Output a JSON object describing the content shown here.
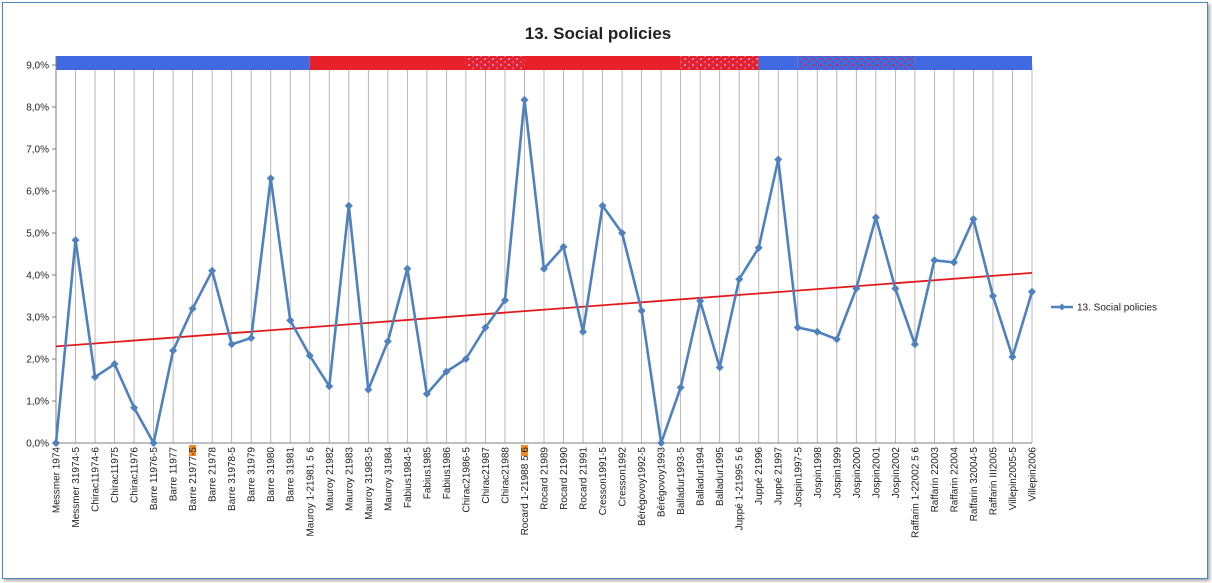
{
  "chart_data": {
    "type": "line",
    "title": "13. Social policies",
    "xlabel": "",
    "ylabel": "",
    "ylim": [
      0,
      9
    ],
    "y_tick_labels": [
      "0,0%",
      "1,0%",
      "2,0%",
      "3,0%",
      "4,0%",
      "5,0%",
      "6,0%",
      "7,0%",
      "8,0%",
      "9,0%"
    ],
    "grid": "vertical lines at each category",
    "legend_position": "right",
    "categories": [
      "Messmer 1974",
      "Messmer 31974-5",
      "Chirac11974-6",
      "Chirac11975",
      "Chirac11976",
      "Barre 11976-5",
      "Barre 11977",
      "Barre 21977-5",
      "Barre 21978",
      "Barre 31978-5",
      "Barre 31979",
      "Barre 31980",
      "Barre 31981",
      "Mauroy 1-21981 5 6",
      "Mauroy 21982",
      "Mauroy 21983",
      "Mauroy 31983-5",
      "Mauroy 31984",
      "Fabius1984-5",
      "Fabius1985",
      "Fabius1986",
      "Chirac21986-5",
      "Chirac21987",
      "Chirac21988",
      "Rocard 1-21988 5 6",
      "Rocard 21989",
      "Rocard 21990",
      "Rocard 21991",
      "Cresson1991-5",
      "Cresson1992",
      "Bérégovoy1992-5",
      "Bérégovoy1993",
      "Balladur1993-5",
      "Balladur1994",
      "Balladur1995",
      "Juppé 1-21995 5 6",
      "Juppé 21996",
      "Juppé 21997",
      "Jospin1997-5",
      "Jospin1998",
      "Jospin1999",
      "Jospin2000",
      "Jospin2001",
      "Jospin2002",
      "Raffarin 1-22002 5 6",
      "Raffarin 22003",
      "Raffarin 22004",
      "Raffarin 32004-5",
      "Raffarin III2005",
      "Villepin2005-5",
      "Villepin2006"
    ],
    "series": [
      {
        "name": "13. Social policies",
        "color": "#4f81bd",
        "marker": "diamond",
        "values": [
          0.0,
          4.83,
          1.57,
          1.88,
          0.84,
          0.0,
          2.2,
          3.2,
          4.1,
          2.35,
          2.5,
          6.3,
          2.92,
          2.08,
          1.35,
          5.65,
          1.27,
          2.42,
          4.15,
          1.17,
          1.7,
          2.0,
          2.75,
          3.4,
          8.17,
          4.15,
          4.67,
          2.65,
          5.65,
          5.0,
          3.15,
          0.0,
          1.32,
          3.38,
          1.8,
          3.9,
          4.65,
          6.75,
          2.75,
          2.65,
          2.47,
          3.68,
          5.37,
          3.68,
          2.35,
          4.35,
          4.3,
          5.33,
          3.5,
          2.05,
          3.6
        ]
      }
    ],
    "trendline": {
      "color": "#e31a1c",
      "start": 2.3,
      "end": 4.05
    },
    "government_band": {
      "segments": [
        {
          "from": 0,
          "to": 13,
          "pattern": "solid",
          "color": "#4169e1"
        },
        {
          "from": 13,
          "to": 21,
          "pattern": "solid",
          "color": "#e8202a"
        },
        {
          "from": 21,
          "to": 24,
          "pattern": "dotted",
          "color": "#e8202a"
        },
        {
          "from": 24,
          "to": 32,
          "pattern": "solid",
          "color": "#e8202a"
        },
        {
          "from": 32,
          "to": 36,
          "pattern": "dotted",
          "color": "#e8202a"
        },
        {
          "from": 36,
          "to": 38,
          "pattern": "solid",
          "color": "#4169e1"
        },
        {
          "from": 38,
          "to": 44,
          "pattern": "dotted",
          "color": "#4169e1"
        },
        {
          "from": 44,
          "to": 50,
          "pattern": "solid",
          "color": "#4169e1"
        }
      ]
    },
    "election_markers": {
      "color": "#f28c28",
      "at_categories": [
        7,
        24
      ]
    }
  }
}
